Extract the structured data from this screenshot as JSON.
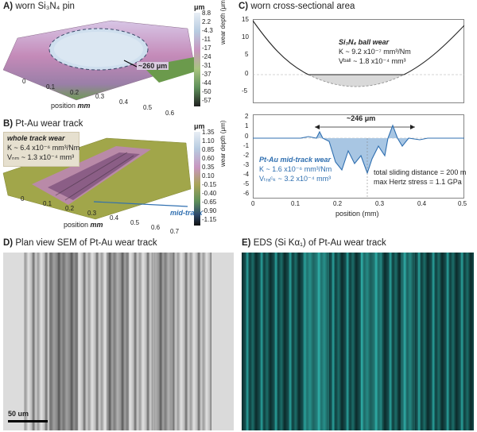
{
  "panelA": {
    "title_letter": "A)",
    "title_text": "worn Si₃N₄ pin",
    "unit": "μm",
    "colorbar_ticks": [
      "8.8",
      "2.2",
      "-4.3",
      "-11",
      "-17",
      "-24",
      "-31",
      "-37",
      "-44",
      "-50",
      "-57"
    ],
    "axis_ticks": [
      "0",
      "0.1",
      "0.2",
      "0.3",
      "0.4",
      "0.5",
      "0.6"
    ],
    "axis_label": "position",
    "axis_unit": "mm",
    "annotation": "~260 μm",
    "colors": {
      "top": "#c9d9ea",
      "mid": "#c28bb8",
      "low": "#7aa05a"
    }
  },
  "panelB": {
    "title_letter": "B)",
    "title_text": "Pt-Au wear track",
    "unit": "μm",
    "colorbar_ticks": [
      "1.35",
      "1.10",
      "0.85",
      "0.60",
      "0.35",
      "0.10",
      "-0.15",
      "-0.40",
      "-0.65",
      "-0.90",
      "-1.15"
    ],
    "axis_ticks": [
      "0",
      "0.1",
      "0.2",
      "0.3",
      "0.4",
      "0.5",
      "0.6",
      "0.7"
    ],
    "axis_label": "position",
    "axis_unit": "mm",
    "box_title": "whole track wear",
    "box_k": "K ~ 6.4 x10⁻⁶ mm³/Nm",
    "box_v": "Vₙₘ ~ 1.3 x10⁻⁴ mm³",
    "mid_track": "mid-track"
  },
  "panelC": {
    "title_letter": "C)",
    "title_text": "worn cross-sectional area",
    "top_ylabel": "wear depth (μm)",
    "top_yticks": [
      "15",
      "10",
      "5",
      "0",
      "-5"
    ],
    "ball_title": "Si₃N₄ ball wear",
    "ball_k": "K ~ 9.2 x10⁻⁷ mm³/Nm",
    "ball_v": "Vᵇᵃˡˡ ~ 1.8 x10⁻⁴ mm³",
    "bottom_ylabel": "wear depth (μm)",
    "bottom_yticks": [
      "2",
      "1",
      "0",
      "-1",
      "-2",
      "-3",
      "-4",
      "-5",
      "-6"
    ],
    "width_annotation": "~246 μm",
    "pt_title": "Pt-Au mid-track wear",
    "pt_k": "K ~ 1.6 x10⁻⁶ mm³/Nm",
    "pt_v": "Vₜᵣₐᶜₖ ~ 3.2 x10⁻⁴ mm³",
    "sliding": "total sliding distance = 200 m",
    "hertz": "max Hertz stress = 1.1 GPa",
    "xticks": [
      "0",
      "0.1",
      "0.2",
      "0.3",
      "0.4",
      "0.5"
    ],
    "xlabel": "position (mm)",
    "colors": {
      "line": "#2f6fb0",
      "fill": "#a8c6e3",
      "ballfill": "#d9d9d9"
    }
  },
  "panelD": {
    "title_letter": "D)",
    "title_text": "Plan view SEM of Pt-Au wear track",
    "scale": "50 um"
  },
  "panelE": {
    "title_letter": "E)",
    "title_text": "EDS (Si Kα₁) of Pt-Au wear track",
    "colors": {
      "bg": "#0c2a2a",
      "hi": "#3fd0c8"
    }
  }
}
